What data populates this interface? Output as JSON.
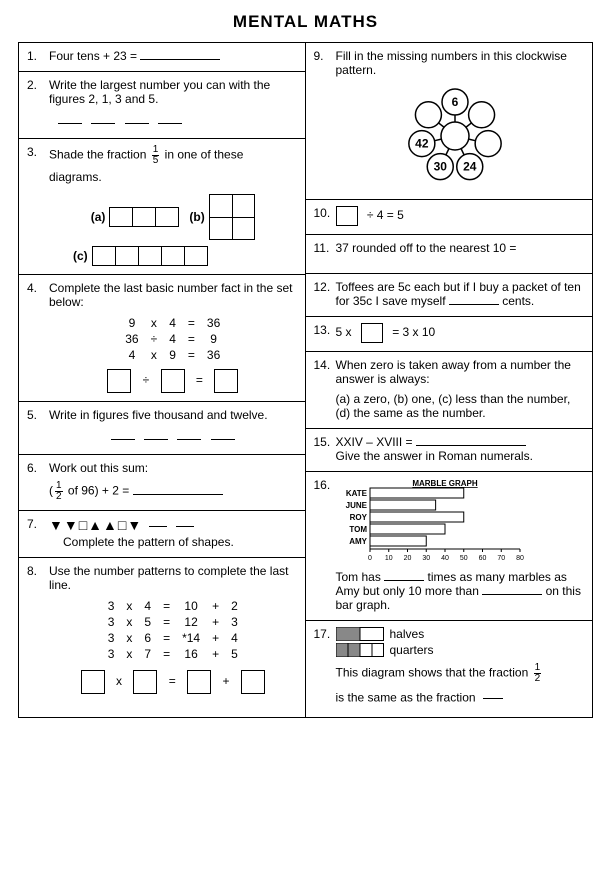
{
  "title": "MENTAL MATHS",
  "q1": {
    "num": "1.",
    "text": "Four tens + 23 ="
  },
  "q2": {
    "num": "2.",
    "text": "Write the largest number you can with the figures 2, 1, 3 and 5."
  },
  "q3": {
    "num": "3.",
    "text1": "Shade the fraction",
    "text2": "in one of these",
    "text3": "diagrams.",
    "frac_num": "1",
    "frac_den": "5",
    "a": "(a)",
    "b": "(b)",
    "c": "(c)"
  },
  "q4": {
    "num": "4.",
    "text": "Complete the last basic number fact in the set below:",
    "rows": [
      [
        "9",
        "x",
        "4",
        "=",
        "36"
      ],
      [
        "36",
        "÷",
        "4",
        "=",
        "9"
      ],
      [
        "4",
        "x",
        "9",
        "=",
        "36"
      ]
    ]
  },
  "q5": {
    "num": "5.",
    "text": "Write in figures five thousand and twelve."
  },
  "q6": {
    "num": "6.",
    "text": "Work out this sum:",
    "expr_open": "(",
    "expr_frac_num": "1",
    "expr_frac_den": "2",
    "expr_rest": "of 96) + 2  ="
  },
  "q7": {
    "num": "7.",
    "shapes": "▼▼□▲▲□▼",
    "text": "Complete the pattern of shapes."
  },
  "q8": {
    "num": "8.",
    "text": "Use the number patterns to complete the last line.",
    "rows": [
      [
        "3",
        "x",
        "4",
        "=",
        "10",
        "+",
        "2"
      ],
      [
        "3",
        "x",
        "5",
        "=",
        "12",
        "+",
        "3"
      ],
      [
        "3",
        "x",
        "6",
        "=",
        "*14",
        "+",
        "4"
      ],
      [
        "3",
        "x",
        "7",
        "=",
        "16",
        "+",
        "5"
      ]
    ]
  },
  "q9": {
    "num": "9.",
    "text": "Fill in the missing numbers in this clockwise pattern.",
    "nodes": [
      "6",
      "",
      "",
      "24",
      "30",
      "42",
      ""
    ],
    "positions": [
      [
        60,
        12
      ],
      [
        90,
        28
      ],
      [
        100,
        58
      ],
      [
        82,
        82
      ],
      [
        48,
        86
      ],
      [
        20,
        58
      ],
      [
        30,
        28
      ]
    ]
  },
  "q10": {
    "num": "10.",
    "expr": "÷ 4 = 5"
  },
  "q11": {
    "num": "11.",
    "text": "37 rounded off to the nearest 10 ="
  },
  "q12": {
    "num": "12.",
    "text1": "Toffees are 5c each but if I buy a packet of ten for 35c I save myself",
    "text2": "cents."
  },
  "q13": {
    "num": "13.",
    "pre": "5  x",
    "post": "=  3  x  10"
  },
  "q14": {
    "num": "14.",
    "text": "When zero is taken away from a number the answer is always:",
    "opts": "(a)  a zero,   (b)  one,   (c)  less than the number,   (d)  the same as the number."
  },
  "q15": {
    "num": "15.",
    "pre": "XXIV – XVIII =",
    "text": "Give the answer in Roman numerals."
  },
  "q16": {
    "num": "16.",
    "chart_title": "MARBLE GRAPH",
    "names": [
      "KATE",
      "JUNE",
      "ROY",
      "TOM",
      "AMY"
    ],
    "values": [
      50,
      35,
      50,
      40,
      30
    ],
    "ticks": [
      "0",
      "10",
      "20",
      "30",
      "40",
      "50",
      "60",
      "70",
      "80"
    ],
    "text1": "Tom has",
    "text2": "times as many marbles as Amy but only 10 more than",
    "text3": "on this bar graph."
  },
  "q17": {
    "num": "17.",
    "halves": "halves",
    "quarters": "quarters",
    "text1": "This diagram shows that the fraction",
    "text2": "is the same as the fraction",
    "frac_num": "1",
    "frac_den": "2"
  }
}
